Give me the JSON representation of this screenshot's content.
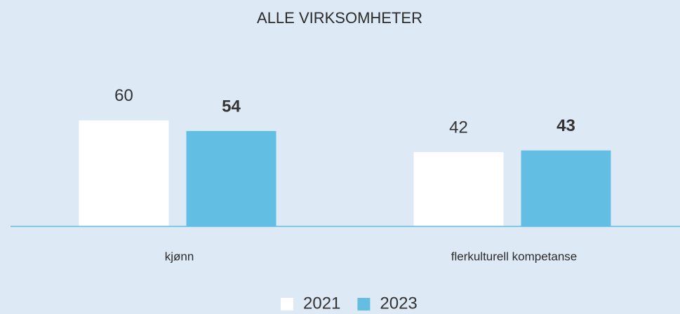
{
  "chart_data": {
    "type": "bar",
    "title": "ALLE VIRKSOMHETER",
    "categories": [
      "kjønn",
      "flerkulturell kompetanse"
    ],
    "series": [
      {
        "name": "2021",
        "color": "#ffffff",
        "values": [
          60,
          42
        ]
      },
      {
        "name": "2023",
        "color": "#62bee3",
        "values": [
          54,
          43
        ]
      }
    ],
    "ylim": [
      0,
      100
    ],
    "legend": "bottom"
  }
}
